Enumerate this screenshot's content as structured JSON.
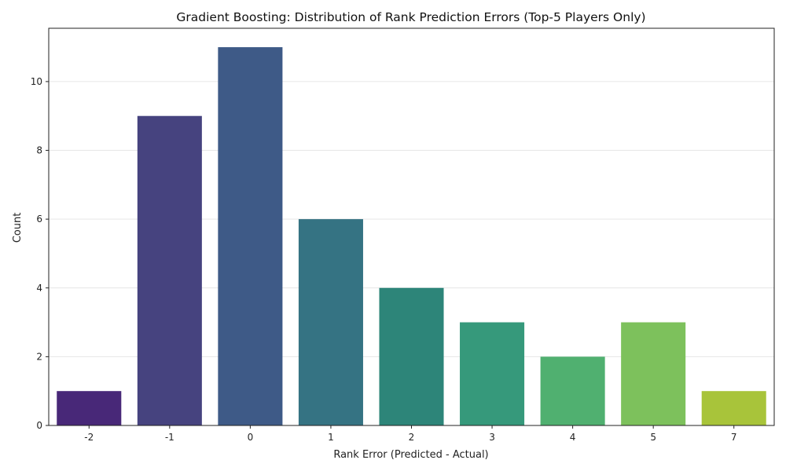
{
  "chart_data": {
    "type": "bar",
    "title": "Gradient Boosting: Distribution of Rank Prediction Errors (Top-5 Players Only)",
    "xlabel": "Rank Error (Predicted - Actual)",
    "ylabel": "Count",
    "categories": [
      "-2",
      "-1",
      "0",
      "1",
      "2",
      "3",
      "4",
      "5",
      "7"
    ],
    "values": [
      1,
      9,
      11,
      6,
      4,
      3,
      2,
      3,
      1
    ],
    "colors": [
      "#482878",
      "#46437f",
      "#3e5a87",
      "#357383",
      "#2d8579",
      "#36997b",
      "#50b070",
      "#7dc15c",
      "#a8c43a"
    ],
    "yticks": [
      0,
      2,
      4,
      6,
      8,
      10
    ],
    "ylim": [
      0,
      11.55
    ],
    "grid": "y",
    "legend": "none"
  }
}
